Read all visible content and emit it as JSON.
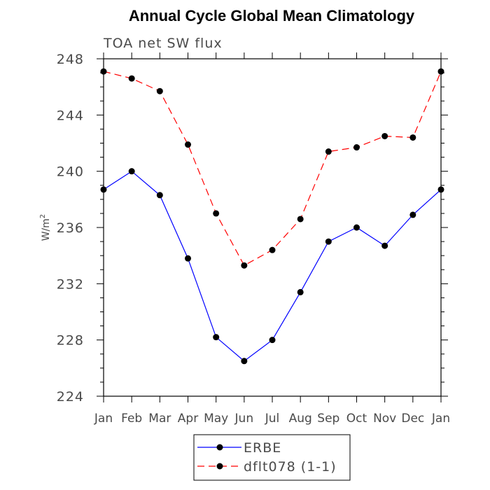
{
  "chart_data": {
    "type": "line",
    "title": "Annual Cycle Global Mean Climatology",
    "subtitle": "TOA net SW flux",
    "ylabel_base": "W/m",
    "ylabel_sup": "2",
    "categories": [
      "Jan",
      "Feb",
      "Mar",
      "Apr",
      "May",
      "Jun",
      "Jul",
      "Aug",
      "Sep",
      "Oct",
      "Nov",
      "Dec",
      "Jan"
    ],
    "ylim": [
      224,
      248
    ],
    "yticks": [
      224,
      228,
      232,
      236,
      240,
      244,
      248
    ],
    "yminor_step": 1,
    "series": [
      {
        "name": "ERBE",
        "color": "#0000ff",
        "dash": "solid",
        "values": [
          238.7,
          240.0,
          238.3,
          233.8,
          228.2,
          226.5,
          228.0,
          231.4,
          235.0,
          236.0,
          234.7,
          236.9,
          238.7
        ]
      },
      {
        "name": "dflt078 (1-1)",
        "color": "#ff0000",
        "dash": "dashed",
        "values": [
          247.1,
          246.6,
          245.7,
          241.9,
          237.0,
          233.3,
          234.4,
          236.6,
          241.4,
          241.7,
          242.5,
          242.4,
          247.1
        ]
      }
    ],
    "legend_position": "bottom-center",
    "grid": false
  }
}
